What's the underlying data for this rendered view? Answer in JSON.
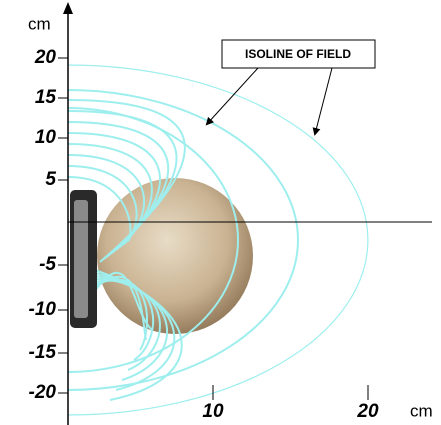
{
  "y_axis": {
    "unit": "cm",
    "labels": [
      "20",
      "15",
      "10",
      "5",
      "-5",
      "-10",
      "-15",
      "-20"
    ]
  },
  "x_axis": {
    "unit": "cm",
    "labels": [
      "10",
      "20"
    ]
  },
  "annotation": "ISOLINE OF FIELD"
}
